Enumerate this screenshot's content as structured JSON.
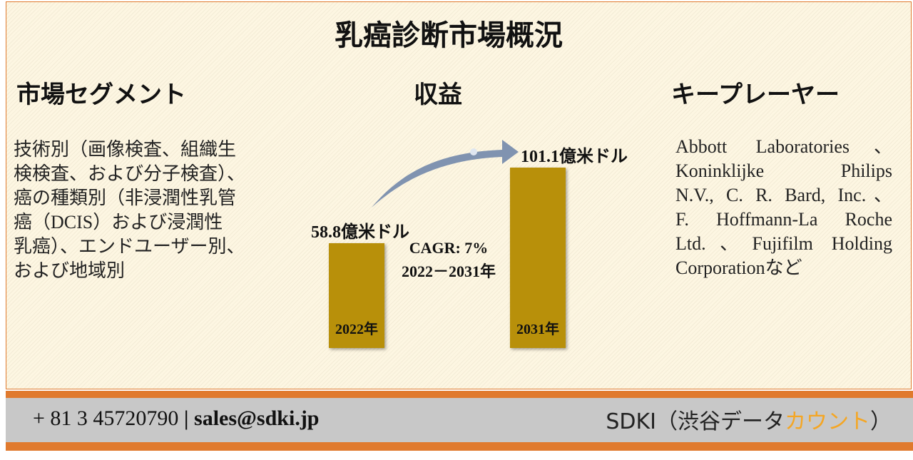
{
  "title": "乳癌診断市場概況",
  "segments": {
    "heading": "市場セグメント",
    "lines": [
      "技術別（画像検査、組織生",
      "検検査、および分子検査）、",
      "癌の種類別（非浸潤性乳管",
      "癌（DCIS）および浸潤性",
      "乳癌）、エンドユーザー別、",
      "および地域別"
    ]
  },
  "revenue": {
    "heading": "収益",
    "bars": [
      {
        "year": "2022年",
        "value": 58.8,
        "label": "58.8億米ドル"
      },
      {
        "year": "2031年",
        "value": 101.1,
        "label": "101.1億米ドル"
      }
    ],
    "cagr": "CAGR: 7%",
    "period": "2022－2031年"
  },
  "players": {
    "heading": "キープレーヤー",
    "lines": [
      "Abbott Laboratories、",
      "Koninklijke Philips",
      "N.V., C. R. Bard, Inc.、",
      "F. Hoffmann-La Roche",
      "Ltd.、Fujifilm Holding",
      "Corporationなど"
    ]
  },
  "footer": {
    "phone": "+ 81 3 45720790",
    "separator": "|",
    "email": "sales@sdki.jp",
    "brand": "SDKI（渋谷データ",
    "brand_highlight": "カウント",
    "brand_end": "）"
  }
}
